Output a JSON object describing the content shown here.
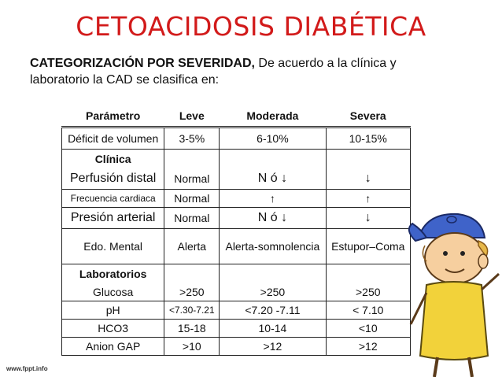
{
  "title": "CETOACIDOSIS DIABÉTICA",
  "subtitle_bold": "CATEGORIZACIÓN POR SEVERIDAD,",
  "subtitle_rest": " De acuerdo a la clínica y laboratorio la CAD se clasifica en:",
  "table": {
    "headers": [
      "Parámetro",
      "Leve",
      "Moderada",
      "Severa"
    ],
    "deficit": [
      "Déficit de volumen",
      "3-5%",
      "6-10%",
      "10-15%"
    ],
    "clinica_label": "Clínica",
    "perfusion": [
      "Perfusión distal",
      "Normal",
      "N ó ↓",
      "↓"
    ],
    "frecuencia": [
      "Frecuencia cardiaca",
      "Normal",
      "↑",
      "↑"
    ],
    "presion": [
      "Presión arterial",
      "Normal",
      "N ó ↓",
      "↓"
    ],
    "mental": [
      "Edo. Mental",
      "Alerta",
      "Alerta-somnolencia",
      "Estupor–Coma"
    ],
    "lab_label": "Laboratorios",
    "glucosa": [
      "Glucosa",
      ">250",
      ">250",
      ">250"
    ],
    "ph": [
      "pH",
      "<7.30-7.21",
      "<7.20 -7.11",
      "< 7.10"
    ],
    "hco3": [
      "HCO3",
      "15-18",
      "10-14",
      "<10"
    ],
    "anion": [
      "Anion GAP",
      ">10",
      ">12",
      ">12"
    ]
  },
  "footer": "www.fppt.info",
  "colors": {
    "title": "#d21a1a",
    "cap": "#3f63c9",
    "shirt": "#f2d23a"
  },
  "illustration": "cartoon-child-with-cap"
}
